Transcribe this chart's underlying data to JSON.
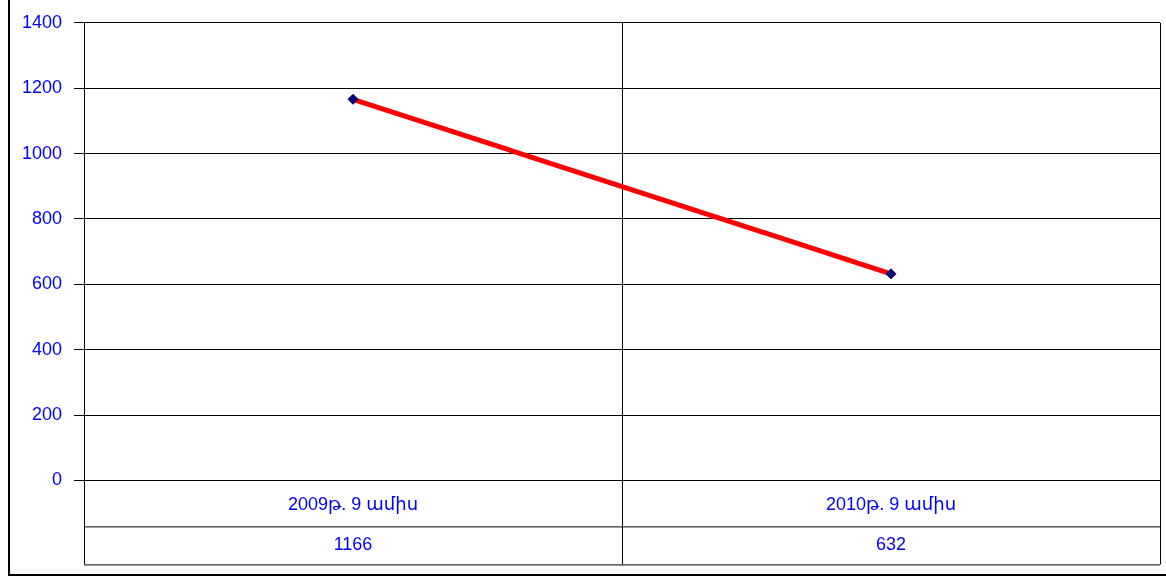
{
  "chart_data": {
    "type": "line",
    "categories": [
      "2009թ. 9 ամիս",
      "2010թ. 9 ամիս"
    ],
    "series": [
      {
        "color": "#ff0000",
        "values": [
          1166,
          632
        ]
      }
    ],
    "ylim": [
      0,
      1400
    ],
    "yticks": [
      0,
      200,
      400,
      600,
      800,
      1000,
      1200,
      1400
    ],
    "grid": true,
    "legend": false,
    "marker": "diamond",
    "data_labels": true
  }
}
